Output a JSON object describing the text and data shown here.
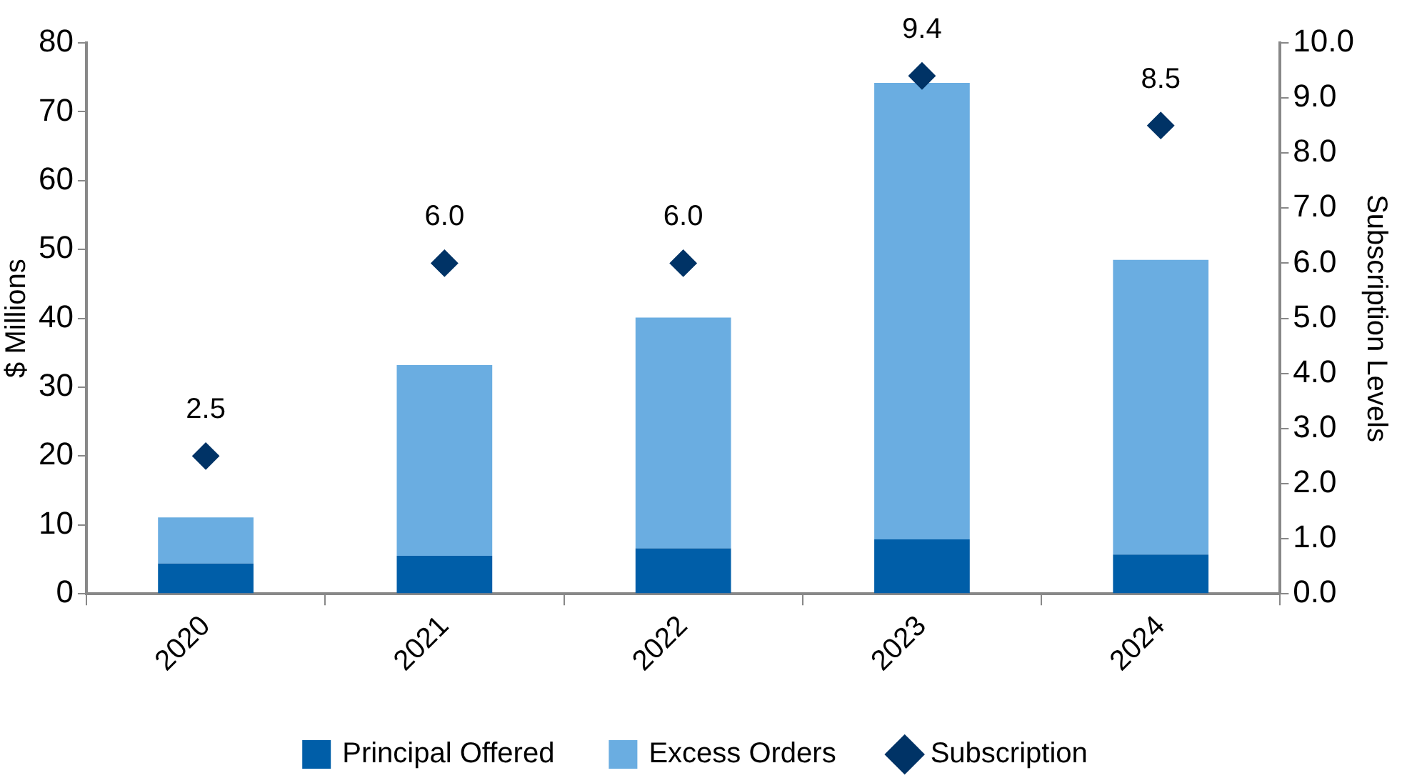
{
  "chart_data": {
    "type": "bar",
    "stacked": true,
    "categories": [
      "2020",
      "2021",
      "2022",
      "2023",
      "2024"
    ],
    "ylabel": "$ Millions",
    "y2label": "Subscription Levels",
    "ylim": [
      0,
      80
    ],
    "yticks": [
      0,
      10,
      20,
      30,
      40,
      50,
      60,
      70,
      80
    ],
    "y2lim": [
      0,
      10
    ],
    "y2ticks": [
      {
        "value": 0,
        "label": "0.0"
      },
      {
        "value": 1,
        "label": "1.0"
      },
      {
        "value": 2,
        "label": "2.0"
      },
      {
        "value": 3,
        "label": "3.0"
      },
      {
        "value": 4,
        "label": "4.0"
      },
      {
        "value": 5,
        "label": "5.0"
      },
      {
        "value": 6,
        "label": "6.0"
      },
      {
        "value": 7,
        "label": "7.0"
      },
      {
        "value": 8,
        "label": "8.0"
      },
      {
        "value": 9,
        "label": "9.0"
      },
      {
        "value": 10,
        "label": "10.0"
      }
    ],
    "grid": false,
    "legend": "bottom",
    "series": [
      {
        "name": "Principal Offered",
        "color": "#005ea8",
        "values": [
          4.4,
          5.5,
          6.6,
          7.9,
          5.7
        ]
      },
      {
        "name": "Excess Orders",
        "color": "#6aade1",
        "values": [
          6.7,
          27.7,
          33.5,
          66.3,
          42.8
        ]
      },
      {
        "name": "Subscription",
        "type": "scatter",
        "axis": "y2",
        "marker": "diamond",
        "color": "#003366",
        "values": [
          2.5,
          6.0,
          6.0,
          9.4,
          8.5
        ],
        "value_labels": [
          "2.5",
          "6.0",
          "6.0",
          "9.4",
          "8.5"
        ]
      }
    ]
  }
}
